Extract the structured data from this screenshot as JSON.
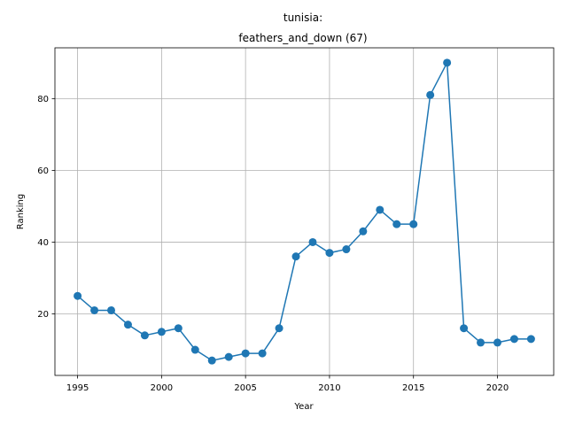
{
  "chart_data": {
    "type": "line",
    "title_line1": "tunisia:",
    "title_line2": "feathers_and_down (67)",
    "xlabel": "Year",
    "ylabel": "Ranking",
    "x": [
      1995,
      1996,
      1997,
      1998,
      1999,
      2000,
      2001,
      2002,
      2003,
      2004,
      2005,
      2006,
      2007,
      2008,
      2009,
      2010,
      2011,
      2012,
      2013,
      2014,
      2015,
      2016,
      2017,
      2018,
      2019,
      2020,
      2021,
      2022
    ],
    "series": [
      {
        "values": [
          25,
          21,
          21,
          17,
          14,
          15,
          16,
          10,
          7,
          8,
          9,
          9,
          16,
          36,
          40,
          37,
          38,
          43,
          49,
          45,
          45,
          81,
          90,
          16,
          12,
          12,
          13,
          13
        ],
        "color": "#1f77b4"
      }
    ],
    "xlim": [
      1993.65,
      2023.35
    ],
    "ylim": [
      2.85,
      94.15
    ],
    "xticks": [
      1995,
      2000,
      2005,
      2010,
      2015,
      2020
    ],
    "yticks": [
      20,
      40,
      60,
      80
    ],
    "grid": true,
    "legend": false
  }
}
